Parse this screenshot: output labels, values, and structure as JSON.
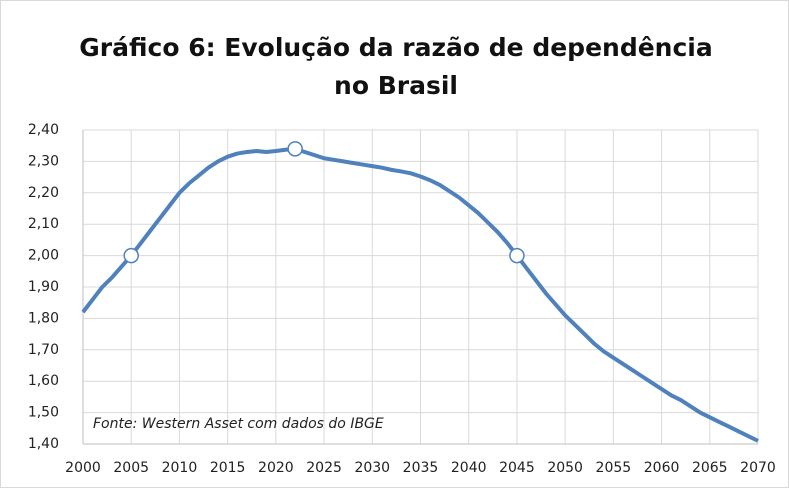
{
  "chart_data": {
    "type": "line",
    "title": "Gráfico 6: Evolução da razão de dependência no Brasil",
    "annotation": "Fonte: Western Asset com dados do IBGE",
    "x": [
      2000,
      2001,
      2002,
      2003,
      2004,
      2005,
      2006,
      2007,
      2008,
      2009,
      2010,
      2011,
      2012,
      2013,
      2014,
      2015,
      2016,
      2017,
      2018,
      2019,
      2020,
      2021,
      2022,
      2023,
      2024,
      2025,
      2026,
      2027,
      2028,
      2029,
      2030,
      2031,
      2032,
      2033,
      2034,
      2035,
      2036,
      2037,
      2038,
      2039,
      2040,
      2041,
      2042,
      2043,
      2044,
      2045,
      2046,
      2047,
      2048,
      2049,
      2050,
      2051,
      2052,
      2053,
      2054,
      2055,
      2056,
      2057,
      2058,
      2059,
      2060,
      2061,
      2062,
      2063,
      2064,
      2065,
      2066,
      2067,
      2068,
      2069,
      2070
    ],
    "series": [
      {
        "color": "#4f81bd",
        "values": [
          1.82,
          1.86,
          1.9,
          1.93,
          1.965,
          2.0,
          2.04,
          2.08,
          2.12,
          2.16,
          2.2,
          2.23,
          2.255,
          2.28,
          2.3,
          2.315,
          2.325,
          2.33,
          2.333,
          2.33,
          2.333,
          2.337,
          2.34,
          2.33,
          2.32,
          2.31,
          2.305,
          2.3,
          2.295,
          2.29,
          2.285,
          2.28,
          2.273,
          2.268,
          2.262,
          2.252,
          2.24,
          2.225,
          2.205,
          2.185,
          2.16,
          2.135,
          2.105,
          2.075,
          2.04,
          2.0,
          1.96,
          1.92,
          1.88,
          1.845,
          1.81,
          1.78,
          1.75,
          1.72,
          1.695,
          1.675,
          1.655,
          1.635,
          1.615,
          1.595,
          1.575,
          1.555,
          1.54,
          1.52,
          1.5,
          1.485,
          1.47,
          1.455,
          1.44,
          1.425,
          1.41
        ]
      }
    ],
    "highlight_x": [
      2005,
      2022,
      2045
    ],
    "xlim": [
      2000,
      2070
    ],
    "xticks": [
      2000,
      2005,
      2010,
      2015,
      2020,
      2025,
      2030,
      2035,
      2040,
      2045,
      2050,
      2055,
      2060,
      2065,
      2070
    ],
    "ylim": [
      1.4,
      2.4
    ],
    "yticks": [
      {
        "value": 1.4,
        "label": "1,40"
      },
      {
        "value": 1.5,
        "label": "1,50"
      },
      {
        "value": 1.6,
        "label": "1,60"
      },
      {
        "value": 1.7,
        "label": "1,70"
      },
      {
        "value": 1.8,
        "label": "1,80"
      },
      {
        "value": 1.9,
        "label": "1,90"
      },
      {
        "value": 2.0,
        "label": "2,00"
      },
      {
        "value": 2.1,
        "label": "2,10"
      },
      {
        "value": 2.2,
        "label": "2,20"
      },
      {
        "value": 2.3,
        "label": "2,30"
      },
      {
        "value": 2.4,
        "label": "2,40"
      }
    ],
    "grid": true
  }
}
